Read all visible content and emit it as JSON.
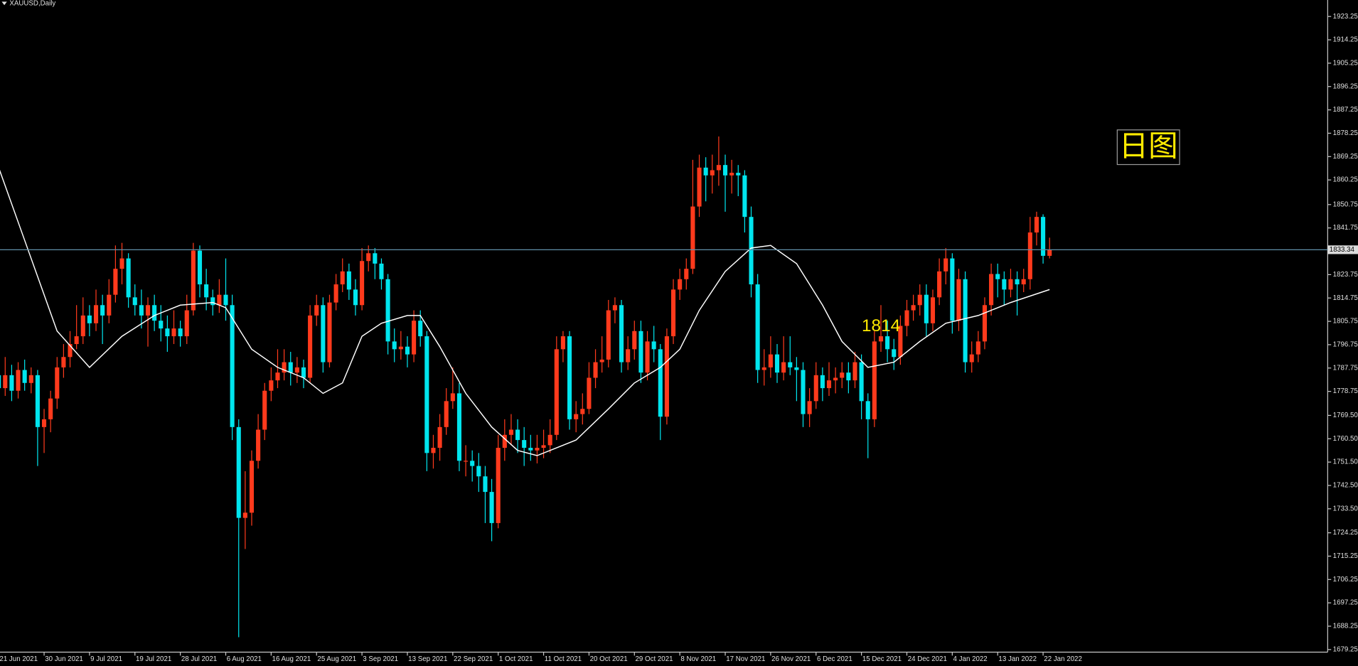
{
  "chart_data": {
    "type": "candlestick",
    "title": "XAUUSD,Daily",
    "up_color": "#ff3a1c",
    "down_color": "#00e5ee",
    "candles": [
      [
        1785,
        1790,
        1776,
        1780
      ],
      [
        1780,
        1792,
        1777,
        1785
      ],
      [
        1785,
        1789,
        1775,
        1779
      ],
      [
        1779,
        1790,
        1776,
        1787
      ],
      [
        1787,
        1791,
        1779,
        1782
      ],
      [
        1782,
        1788,
        1778,
        1785
      ],
      [
        1785,
        1787,
        1750,
        1765
      ],
      [
        1765,
        1772,
        1755,
        1768
      ],
      [
        1768,
        1779,
        1763,
        1776
      ],
      [
        1776,
        1792,
        1772,
        1788
      ],
      [
        1788,
        1797,
        1784,
        1792
      ],
      [
        1792,
        1802,
        1788,
        1797
      ],
      [
        1797,
        1812,
        1795,
        1800
      ],
      [
        1800,
        1815,
        1797,
        1808
      ],
      [
        1808,
        1812,
        1800,
        1805
      ],
      [
        1805,
        1818,
        1802,
        1812
      ],
      [
        1812,
        1816,
        1797,
        1808
      ],
      [
        1808,
        1822,
        1805,
        1816
      ],
      [
        1816,
        1835,
        1813,
        1826
      ],
      [
        1826,
        1836,
        1820,
        1830
      ],
      [
        1830,
        1832,
        1811,
        1815
      ],
      [
        1815,
        1820,
        1808,
        1812
      ],
      [
        1812,
        1818,
        1803,
        1808
      ],
      [
        1808,
        1815,
        1796,
        1812
      ],
      [
        1812,
        1816,
        1802,
        1806
      ],
      [
        1806,
        1812,
        1798,
        1803
      ],
      [
        1803,
        1808,
        1794,
        1800
      ],
      [
        1800,
        1810,
        1797,
        1803
      ],
      [
        1803,
        1806,
        1796,
        1800
      ],
      [
        1800,
        1816,
        1797,
        1810
      ],
      [
        1810,
        1836,
        1808,
        1833
      ],
      [
        1833,
        1835,
        1815,
        1820
      ],
      [
        1820,
        1826,
        1810,
        1815
      ],
      [
        1815,
        1818,
        1808,
        1812
      ],
      [
        1812,
        1822,
        1809,
        1816
      ],
      [
        1816,
        1830,
        1806,
        1812
      ],
      [
        1812,
        1816,
        1760,
        1765
      ],
      [
        1765,
        1768,
        1684,
        1730
      ],
      [
        1730,
        1748,
        1718,
        1732
      ],
      [
        1732,
        1756,
        1727,
        1752
      ],
      [
        1752,
        1770,
        1749,
        1764
      ],
      [
        1764,
        1782,
        1760,
        1779
      ],
      [
        1779,
        1788,
        1775,
        1783
      ],
      [
        1783,
        1795,
        1780,
        1786
      ],
      [
        1786,
        1795,
        1783,
        1790
      ],
      [
        1790,
        1794,
        1781,
        1786
      ],
      [
        1786,
        1792,
        1782,
        1788
      ],
      [
        1788,
        1791,
        1780,
        1784
      ],
      [
        1784,
        1812,
        1782,
        1808
      ],
      [
        1808,
        1816,
        1804,
        1812
      ],
      [
        1812,
        1815,
        1786,
        1790
      ],
      [
        1790,
        1816,
        1788,
        1813
      ],
      [
        1813,
        1824,
        1810,
        1820
      ],
      [
        1820,
        1830,
        1817,
        1825
      ],
      [
        1825,
        1828,
        1814,
        1818
      ],
      [
        1818,
        1822,
        1808,
        1812
      ],
      [
        1812,
        1834,
        1810,
        1829
      ],
      [
        1829,
        1835,
        1825,
        1832
      ],
      [
        1832,
        1834,
        1822,
        1828
      ],
      [
        1828,
        1830,
        1818,
        1822
      ],
      [
        1822,
        1824,
        1793,
        1798
      ],
      [
        1798,
        1803,
        1790,
        1795
      ],
      [
        1795,
        1802,
        1791,
        1796
      ],
      [
        1796,
        1800,
        1788,
        1793
      ],
      [
        1793,
        1810,
        1790,
        1806
      ],
      [
        1806,
        1810,
        1796,
        1800
      ],
      [
        1800,
        1802,
        1748,
        1755
      ],
      [
        1755,
        1762,
        1749,
        1757
      ],
      [
        1757,
        1770,
        1752,
        1765
      ],
      [
        1765,
        1780,
        1762,
        1775
      ],
      [
        1775,
        1788,
        1772,
        1778
      ],
      [
        1778,
        1782,
        1748,
        1752
      ],
      [
        1752,
        1758,
        1746,
        1752
      ],
      [
        1752,
        1756,
        1744,
        1750
      ],
      [
        1750,
        1755,
        1740,
        1746
      ],
      [
        1746,
        1750,
        1728,
        1740
      ],
      [
        1740,
        1745,
        1721,
        1728
      ],
      [
        1728,
        1762,
        1726,
        1757
      ],
      [
        1757,
        1768,
        1752,
        1762
      ],
      [
        1762,
        1770,
        1758,
        1764
      ],
      [
        1764,
        1768,
        1755,
        1760
      ],
      [
        1760,
        1765,
        1750,
        1757
      ],
      [
        1757,
        1762,
        1752,
        1756
      ],
      [
        1756,
        1762,
        1751,
        1757
      ],
      [
        1757,
        1764,
        1753,
        1758
      ],
      [
        1758,
        1768,
        1755,
        1762
      ],
      [
        1762,
        1800,
        1760,
        1795
      ],
      [
        1795,
        1802,
        1790,
        1800
      ],
      [
        1800,
        1802,
        1764,
        1768
      ],
      [
        1768,
        1775,
        1763,
        1770
      ],
      [
        1770,
        1778,
        1766,
        1772
      ],
      [
        1772,
        1790,
        1770,
        1784
      ],
      [
        1784,
        1795,
        1780,
        1790
      ],
      [
        1790,
        1800,
        1786,
        1791
      ],
      [
        1791,
        1814,
        1788,
        1810
      ],
      [
        1810,
        1815,
        1805,
        1812
      ],
      [
        1812,
        1814,
        1786,
        1790
      ],
      [
        1790,
        1800,
        1787,
        1795
      ],
      [
        1795,
        1806,
        1791,
        1802
      ],
      [
        1802,
        1806,
        1782,
        1786
      ],
      [
        1786,
        1802,
        1783,
        1798
      ],
      [
        1798,
        1804,
        1790,
        1795
      ],
      [
        1795,
        1797,
        1760,
        1769
      ],
      [
        1769,
        1803,
        1766,
        1800
      ],
      [
        1800,
        1822,
        1797,
        1818
      ],
      [
        1818,
        1826,
        1814,
        1822
      ],
      [
        1822,
        1830,
        1818,
        1826
      ],
      [
        1826,
        1868,
        1824,
        1850
      ],
      [
        1850,
        1870,
        1846,
        1865
      ],
      [
        1865,
        1869,
        1852,
        1862
      ],
      [
        1862,
        1870,
        1855,
        1864
      ],
      [
        1864,
        1877,
        1858,
        1866
      ],
      [
        1866,
        1870,
        1848,
        1862
      ],
      [
        1862,
        1868,
        1855,
        1863
      ],
      [
        1863,
        1866,
        1854,
        1862
      ],
      [
        1862,
        1864,
        1840,
        1846
      ],
      [
        1846,
        1850,
        1815,
        1820
      ],
      [
        1820,
        1824,
        1782,
        1787
      ],
      [
        1787,
        1795,
        1781,
        1788
      ],
      [
        1788,
        1800,
        1784,
        1793
      ],
      [
        1793,
        1797,
        1782,
        1786
      ],
      [
        1786,
        1800,
        1783,
        1790
      ],
      [
        1790,
        1800,
        1785,
        1788
      ],
      [
        1788,
        1792,
        1775,
        1787
      ],
      [
        1787,
        1790,
        1765,
        1770
      ],
      [
        1770,
        1780,
        1765,
        1775
      ],
      [
        1775,
        1790,
        1772,
        1785
      ],
      [
        1785,
        1788,
        1775,
        1780
      ],
      [
        1780,
        1790,
        1777,
        1783
      ],
      [
        1783,
        1788,
        1778,
        1784
      ],
      [
        1784,
        1790,
        1780,
        1786
      ],
      [
        1786,
        1790,
        1778,
        1783
      ],
      [
        1783,
        1794,
        1780,
        1790
      ],
      [
        1790,
        1793,
        1768,
        1775
      ],
      [
        1775,
        1778,
        1753,
        1768
      ],
      [
        1768,
        1802,
        1765,
        1798
      ],
      [
        1798,
        1812,
        1794,
        1800
      ],
      [
        1800,
        1806,
        1790,
        1795
      ],
      [
        1795,
        1799,
        1787,
        1792
      ],
      [
        1792,
        1808,
        1789,
        1804
      ],
      [
        1804,
        1814,
        1800,
        1810
      ],
      [
        1810,
        1816,
        1806,
        1812
      ],
      [
        1812,
        1820,
        1808,
        1816
      ],
      [
        1816,
        1820,
        1800,
        1805
      ],
      [
        1805,
        1818,
        1802,
        1815
      ],
      [
        1815,
        1830,
        1812,
        1825
      ],
      [
        1825,
        1834,
        1820,
        1830
      ],
      [
        1830,
        1832,
        1801,
        1806
      ],
      [
        1806,
        1826,
        1802,
        1822
      ],
      [
        1822,
        1825,
        1786,
        1790
      ],
      [
        1790,
        1798,
        1786,
        1793
      ],
      [
        1793,
        1802,
        1790,
        1798
      ],
      [
        1798,
        1815,
        1795,
        1812
      ],
      [
        1812,
        1828,
        1808,
        1824
      ],
      [
        1824,
        1828,
        1815,
        1822
      ],
      [
        1822,
        1825,
        1812,
        1818
      ],
      [
        1818,
        1826,
        1815,
        1822
      ],
      [
        1822,
        1825,
        1808,
        1820
      ],
      [
        1820,
        1826,
        1817,
        1822
      ],
      [
        1822,
        1846,
        1818,
        1840
      ],
      [
        1840,
        1848,
        1835,
        1846
      ],
      [
        1846,
        1847,
        1828,
        1831
      ],
      [
        1831,
        1838,
        1830,
        1833.34
      ]
    ],
    "ma": {
      "color": "#ffffff",
      "x": [
        0,
        5,
        9,
        14,
        19,
        24,
        28,
        33,
        35,
        39,
        43,
        47,
        50,
        53,
        56,
        59,
        63,
        65,
        68,
        72,
        76,
        80,
        83,
        86,
        89,
        94,
        98,
        102,
        105,
        108,
        112,
        116,
        119,
        123,
        127,
        130,
        134,
        138,
        142,
        146,
        151,
        156,
        162
      ],
      "values": [
        1865,
        1830,
        1802,
        1788,
        1800,
        1808,
        1812,
        1813,
        1811,
        1795,
        1788,
        1784,
        1778,
        1782,
        1800,
        1805,
        1808,
        1808,
        1796,
        1778,
        1765,
        1756,
        1754,
        1757,
        1760,
        1772,
        1782,
        1788,
        1795,
        1810,
        1825,
        1834,
        1835,
        1828,
        1812,
        1798,
        1788,
        1790,
        1798,
        1805,
        1808,
        1813,
        1818
      ]
    },
    "last_price": 1833.34,
    "last_price_color": "#5f8fa8",
    "ylim": [
      1678.25,
      1929.6
    ],
    "yticks": [
      1923.25,
      1914.25,
      1905.25,
      1896.25,
      1887.25,
      1878.25,
      1869.25,
      1860.25,
      1850.75,
      1841.75,
      1823.75,
      1814.75,
      1805.75,
      1796.75,
      1787.75,
      1778.75,
      {
        "value": 1769.5,
        "label": "1769.50"
      },
      {
        "value": 1760.5,
        "label": "1760.50"
      },
      {
        "value": 1751.5,
        "label": "1751.50"
      },
      {
        "value": 1742.5,
        "label": "1742.50"
      },
      {
        "value": 1733.5,
        "label": "1733.50"
      },
      1724.25,
      1715.25,
      1706.25,
      1697.25,
      1688.25,
      1679.25
    ],
    "xticks": [
      {
        "value": 0,
        "label": "21 Jun 2021"
      },
      {
        "value": 7,
        "label": "30 Jun 2021"
      },
      {
        "value": 14,
        "label": "9 Jul 2021"
      },
      {
        "value": 21,
        "label": "19 Jul 2021"
      },
      {
        "value": 28,
        "label": "28 Jul 2021"
      },
      {
        "value": 35,
        "label": "6 Aug 2021"
      },
      {
        "value": 42,
        "label": "16 Aug 2021"
      },
      {
        "value": 49,
        "label": "25 Aug 2021"
      },
      {
        "value": 56,
        "label": "3 Sep 2021"
      },
      {
        "value": 63,
        "label": "13 Sep 2021"
      },
      {
        "value": 70,
        "label": "22 Sep 2021"
      },
      {
        "value": 77,
        "label": "1 Oct 2021"
      },
      {
        "value": 84,
        "label": "11 Oct 2021"
      },
      {
        "value": 91,
        "label": "20 Oct 2021"
      },
      {
        "value": 98,
        "label": "29 Oct 2021"
      },
      {
        "value": 105,
        "label": "8 Nov 2021"
      },
      {
        "value": 112,
        "label": "17 Nov 2021"
      },
      {
        "value": 119,
        "label": "26 Nov 2021"
      },
      {
        "value": 126,
        "label": "6 Dec 2021"
      },
      {
        "value": 133,
        "label": "15 Dec 2021"
      },
      {
        "value": 140,
        "label": "24 Dec 2021"
      },
      {
        "value": 147,
        "label": "4 Jan 2022"
      },
      {
        "value": 154,
        "label": "13 Jan 2022"
      },
      {
        "value": 161,
        "label": "22 Jan 2022"
      }
    ],
    "annotations": [
      {
        "text": "1814"
      },
      {
        "text": "日图"
      }
    ]
  }
}
